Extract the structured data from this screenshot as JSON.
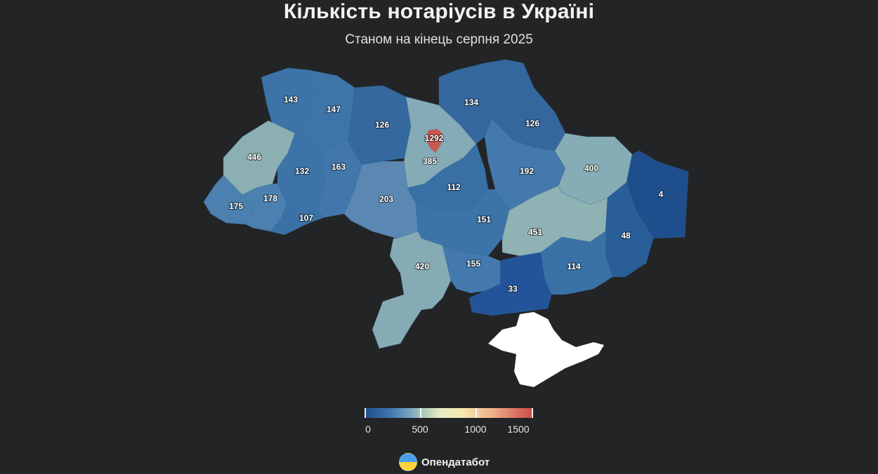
{
  "title": "Кількість нотаріусів в Україні",
  "subtitle": "Станом на кінець серпня 2025",
  "legend": {
    "ticks": [
      "0",
      "500",
      "1000",
      "1500"
    ],
    "min": 0,
    "max": 1500
  },
  "brand": {
    "name": "Опендатабот",
    "icon": "opendatabot-logo-icon"
  },
  "colors": {
    "background": "#222426",
    "low": "#1f4e8c",
    "mid_low": "#3e77ad",
    "mid": "#8fb2b4",
    "high": "#c74d48",
    "crimea": "#ffffff"
  },
  "regions": [
    {
      "id": "volyn",
      "value": 143
    },
    {
      "id": "rivne",
      "value": 147
    },
    {
      "id": "zhytomyr",
      "value": 126
    },
    {
      "id": "kyiv-oblast",
      "value": 385
    },
    {
      "id": "kyiv-city",
      "value": 1292
    },
    {
      "id": "chernihiv",
      "value": 134
    },
    {
      "id": "sumy",
      "value": 126
    },
    {
      "id": "lviv",
      "value": 446
    },
    {
      "id": "ternopil",
      "value": 132
    },
    {
      "id": "khmelnytskyi",
      "value": 163
    },
    {
      "id": "poltava",
      "value": 192
    },
    {
      "id": "kharkiv",
      "value": 400
    },
    {
      "id": "luhansk",
      "value": 4
    },
    {
      "id": "zakarpattia",
      "value": 175
    },
    {
      "id": "ivano-frankivsk",
      "value": 178
    },
    {
      "id": "chernivtsi",
      "value": 107
    },
    {
      "id": "vinnytsia",
      "value": 203
    },
    {
      "id": "cherkasy",
      "value": 112
    },
    {
      "id": "kirovohrad",
      "value": 151
    },
    {
      "id": "dnipro",
      "value": 451
    },
    {
      "id": "donetsk",
      "value": 48
    },
    {
      "id": "odesa",
      "value": 420
    },
    {
      "id": "mykolaiv",
      "value": 155
    },
    {
      "id": "zaporizhzhia",
      "value": 114
    },
    {
      "id": "kherson",
      "value": 33
    }
  ]
}
